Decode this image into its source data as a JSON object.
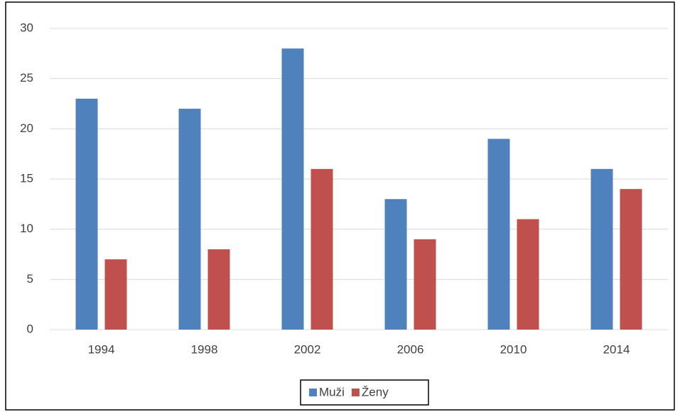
{
  "chart_data": {
    "type": "bar",
    "categories": [
      "1994",
      "1998",
      "2002",
      "2006",
      "2010",
      "2014"
    ],
    "series": [
      {
        "name": "Muži",
        "color": "#4f81bd",
        "values": [
          23,
          22,
          28,
          13,
          19,
          16
        ]
      },
      {
        "name": "Ženy",
        "color": "#c0504d",
        "values": [
          7,
          8,
          16,
          9,
          11,
          14
        ]
      }
    ],
    "ylim": [
      0,
      30
    ],
    "yticks": [
      0,
      5,
      10,
      15,
      20,
      25,
      30
    ],
    "grid": true,
    "legend": "bottom"
  }
}
